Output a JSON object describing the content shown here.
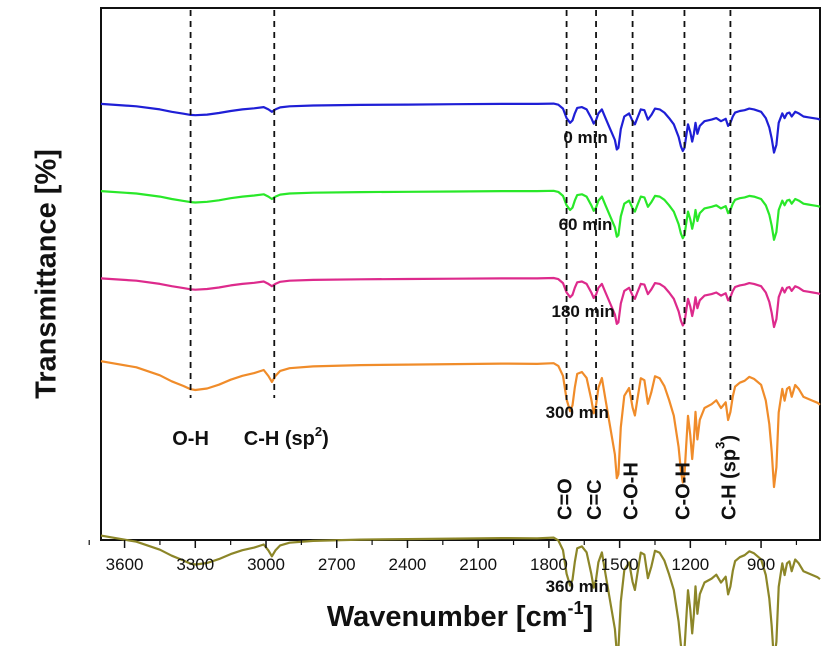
{
  "chart_data": {
    "type": "line",
    "title": "",
    "xlabel": "Wavenumber [cm",
    "xlabel_sup": "-1",
    "xlabel_end": "]",
    "ylabel": "Transmittance [%]",
    "x_reversed": true,
    "xlim": [
      3700,
      650
    ],
    "xticks": [
      "3600",
      "3300",
      "3000",
      "2700",
      "2400",
      "2100",
      "1800",
      "1500",
      "1200",
      "900"
    ],
    "ylim": [
      -5,
      1.1
    ],
    "y_ticks_shown": false,
    "series_shape": {
      "description": "relative transmittance shape (data units, 0 = baseline, negative = absorption)",
      "x": [
        3700,
        3550,
        3450,
        3400,
        3350,
        3320,
        3300,
        3250,
        3200,
        3150,
        3100,
        3050,
        3010,
        2990,
        2975,
        2960,
        2940,
        2900,
        2800,
        2600,
        2400,
        2200,
        2000,
        1850,
        1780,
        1760,
        1740,
        1725,
        1710,
        1700,
        1690,
        1680,
        1660,
        1640,
        1620,
        1610,
        1600,
        1590,
        1575,
        1560,
        1540,
        1520,
        1512,
        1505,
        1495,
        1480,
        1460,
        1445,
        1435,
        1425,
        1410,
        1395,
        1380,
        1365,
        1350,
        1330,
        1310,
        1290,
        1270,
        1250,
        1240,
        1232,
        1225,
        1218,
        1210,
        1200,
        1192,
        1185,
        1178,
        1170,
        1160,
        1140,
        1110,
        1090,
        1070,
        1050,
        1040,
        1030,
        1020,
        1010,
        990,
        970,
        950,
        930,
        900,
        880,
        865,
        855,
        845,
        835,
        825,
        810,
        800,
        790,
        780,
        770,
        755,
        740,
        720,
        700,
        680,
        660,
        650
      ],
      "y": [
        0,
        -0.15,
        -0.35,
        -0.5,
        -0.62,
        -0.7,
        -0.72,
        -0.68,
        -0.58,
        -0.45,
        -0.35,
        -0.28,
        -0.2,
        -0.35,
        -0.5,
        -0.35,
        -0.22,
        -0.15,
        -0.1,
        -0.06,
        -0.04,
        -0.02,
        0,
        0,
        0.02,
        -0.05,
        -0.3,
        -0.9,
        -1.2,
        -1.05,
        -0.6,
        -0.25,
        -0.2,
        -0.35,
        -0.9,
        -1.25,
        -1.05,
        -0.6,
        -0.35,
        -0.9,
        -1.6,
        -2.3,
        -2.9,
        -2.8,
        -1.6,
        -0.8,
        -0.6,
        -1.1,
        -1.3,
        -0.9,
        -0.35,
        -0.4,
        -1.0,
        -0.7,
        -0.3,
        -0.35,
        -0.55,
        -0.9,
        -1.3,
        -2.1,
        -2.7,
        -3.0,
        -2.8,
        -2.1,
        -1.3,
        -1.8,
        -2.4,
        -1.9,
        -1.2,
        -1.9,
        -1.4,
        -1.1,
        -1.0,
        -0.9,
        -1.1,
        -0.95,
        -1.4,
        -1.2,
        -0.8,
        -0.55,
        -0.45,
        -0.4,
        -0.3,
        -0.35,
        -0.5,
        -0.9,
        -1.5,
        -2.2,
        -3.1,
        -2.6,
        -1.2,
        -0.6,
        -0.9,
        -0.6,
        -0.55,
        -0.8,
        -0.5,
        -0.6,
        -0.8,
        -0.85,
        -0.9,
        -0.95,
        -1.0
      ]
    },
    "series": [
      {
        "name": "0 min",
        "label": "0 min",
        "color": "#1f1fd6",
        "scale": 0.18,
        "offset": 0
      },
      {
        "name": "60 min",
        "label": "60 min",
        "color": "#29e829",
        "scale": 0.18,
        "offset": -1
      },
      {
        "name": "180 min",
        "label": "180 min",
        "color": "#dd2a8c",
        "scale": 0.18,
        "offset": -2
      },
      {
        "name": "300 min",
        "label": "300 min",
        "color": "#f08c2a",
        "scale": 0.45,
        "offset": -3,
        "baseline_tilt": 0.05
      },
      {
        "name": "360 min",
        "label": "360 min",
        "color": "#8c8628",
        "scale": 0.45,
        "offset": -5,
        "baseline_tilt": 0.05
      }
    ],
    "reference_lines": [
      {
        "x": 3320,
        "label": "O-H",
        "orientation": "horizontal"
      },
      {
        "x": 2965,
        "label": "C-H (sp",
        "sup": "2",
        "label_end": ")",
        "orientation": "horizontal"
      },
      {
        "x": 1725,
        "label": "C=O",
        "orientation": "vertical"
      },
      {
        "x": 1600,
        "label": "C=C",
        "orientation": "vertical"
      },
      {
        "x": 1445,
        "label": "C-O-H",
        "orientation": "vertical"
      },
      {
        "x": 1225,
        "label": "C-O-H",
        "orientation": "vertical"
      },
      {
        "x": 1030,
        "label": "C-H (sp",
        "sup": "3",
        "label_end": ")",
        "orientation": "vertical"
      }
    ]
  }
}
